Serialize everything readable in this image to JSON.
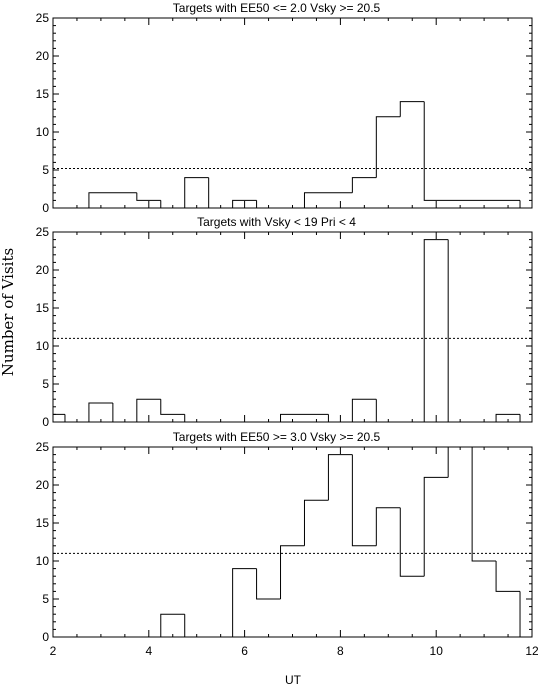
{
  "y_axis_label": "Number of Visits",
  "x_axis_label": "UT",
  "chart_data": [
    {
      "type": "histogram",
      "title": "Targets with EE50 <= 2.0 Vsky >= 20.5",
      "ylim": [
        0,
        25
      ],
      "xlim": [
        2,
        12
      ],
      "y_ticks": [
        "0",
        "5",
        "10",
        "15",
        "20",
        "25"
      ],
      "bin_edges": [
        2.0,
        2.25,
        2.75,
        3.75,
        4.25,
        4.75,
        5.25,
        5.75,
        6.25,
        6.75,
        7.25,
        8.25,
        8.75,
        9.25,
        9.75,
        11.75
      ],
      "values": [
        0,
        0,
        2,
        1,
        0,
        4,
        0,
        1,
        0,
        0,
        2,
        4,
        12,
        14,
        1
      ],
      "reference_line": 5.2
    },
    {
      "type": "histogram",
      "title": "Targets with Vsky < 19 Pri < 4",
      "ylim": [
        0,
        25
      ],
      "xlim": [
        2,
        12
      ],
      "y_ticks": [
        "0",
        "5",
        "10",
        "15",
        "20",
        "25"
      ],
      "bin_edges": [
        2.0,
        2.25,
        2.75,
        3.25,
        3.75,
        4.25,
        4.75,
        5.25,
        6.75,
        7.75,
        8.25,
        8.75,
        9.75,
        10.25,
        11.25,
        11.75
      ],
      "values": [
        1,
        0,
        2.5,
        0,
        3,
        1,
        0,
        0,
        1,
        0,
        3,
        0,
        24,
        0,
        1
      ],
      "reference_line": 11.0
    },
    {
      "type": "histogram",
      "title": "Targets with EE50 >= 3.0 Vsky >= 20.5",
      "ylim": [
        0,
        25
      ],
      "xlim": [
        2,
        12
      ],
      "x_ticks": [
        "2",
        "4",
        "6",
        "8",
        "10",
        "12"
      ],
      "y_ticks": [
        "0",
        "5",
        "10",
        "15",
        "20",
        "25"
      ],
      "bin_edges": [
        2.0,
        4.25,
        4.75,
        5.75,
        6.25,
        6.75,
        7.25,
        7.75,
        8.25,
        8.75,
        9.25,
        9.75,
        10.25,
        10.75,
        11.25,
        11.75
      ],
      "values": [
        0,
        3,
        0,
        9,
        5,
        12,
        18,
        24,
        12,
        17,
        8,
        21,
        25,
        10,
        6
      ],
      "reference_line": 11.0
    }
  ]
}
